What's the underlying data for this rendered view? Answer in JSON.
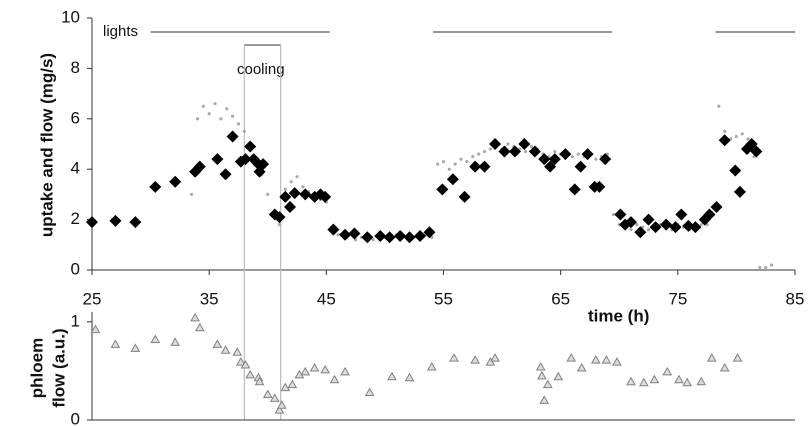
{
  "chart_data": [
    {
      "type": "scatter",
      "y_label": "uptake and flow (mg/s)",
      "x_label": "time (h)",
      "xlim": [
        25,
        85
      ],
      "xticks": [
        25,
        35,
        45,
        55,
        65,
        75,
        85
      ],
      "ylim": [
        0,
        10
      ],
      "yticks": [
        0,
        2,
        4,
        6,
        8,
        10
      ],
      "series": [
        {
          "marker": "dot",
          "color": "#a9a9a9",
          "x": [
            33.5,
            34,
            34.5,
            35,
            35.5,
            36,
            36.5,
            37,
            37.5,
            38,
            38.5,
            39,
            39.5,
            40,
            40.5,
            41,
            41.5,
            42,
            42.5,
            43,
            43.5,
            44,
            44.5,
            45,
            45.5,
            46,
            46.5,
            47,
            47.5,
            48,
            48.5,
            49,
            49.5,
            50,
            50.5,
            51,
            51.5,
            52,
            52.5,
            53,
            53.5,
            54,
            54.5,
            55,
            55.5,
            56,
            56.5,
            57,
            57.5,
            58,
            58.5,
            59,
            59.5,
            60,
            60.5,
            61,
            61.5,
            62,
            62.5,
            63,
            63.5,
            64,
            64.5,
            65,
            65.5,
            66,
            66.5,
            67,
            67.5,
            68,
            68.5,
            69,
            69.5,
            70,
            70.5,
            71,
            71.5,
            72,
            72.5,
            73,
            73.5,
            74,
            74.5,
            75,
            75.5,
            76,
            76.5,
            77,
            77.5,
            78,
            78.5,
            79,
            79.5,
            80,
            80.5,
            81,
            81.5,
            82,
            82.5,
            83
          ],
          "values": [
            3.0,
            6.0,
            6.5,
            6.2,
            6.6,
            6.0,
            6.4,
            6.1,
            5.8,
            5.5,
            5.0,
            4.3,
            3.8,
            3.0,
            2.2,
            1.8,
            3.2,
            3.5,
            3.7,
            3.3,
            3.1,
            2.9,
            2.8,
            2.7,
            1.5,
            1.4,
            1.3,
            1.4,
            1.2,
            1.3,
            1.4,
            1.2,
            1.3,
            1.3,
            1.2,
            1.4,
            1.3,
            1.2,
            1.3,
            1.3,
            1.4,
            1.3,
            4.2,
            4.3,
            4.0,
            4.2,
            4.4,
            4.3,
            4.5,
            4.6,
            4.7,
            4.8,
            4.9,
            4.8,
            5.0,
            4.9,
            4.8,
            4.7,
            4.9,
            4.8,
            4.6,
            4.5,
            4.7,
            4.6,
            4.7,
            4.5,
            4.6,
            4.5,
            4.6,
            4.4,
            4.5,
            4.6,
            2.2,
            1.8,
            1.7,
            1.6,
            1.8,
            1.7,
            1.6,
            1.7,
            1.8,
            1.7,
            1.6,
            1.8,
            1.7,
            1.6,
            1.7,
            1.8,
            1.8,
            2.2,
            6.5,
            5.5,
            5.2,
            5.3,
            5.4,
            5.2,
            4.5,
            0.1,
            0.1,
            0.2
          ]
        },
        {
          "marker": "diamond",
          "color": "#000000",
          "x": [
            25,
            27,
            28.7,
            30.4,
            32.1,
            33.8,
            34.2,
            35.7,
            36.4,
            37,
            37.7,
            38.1,
            38.5,
            38.8,
            39.2,
            39.3,
            39.6,
            40.6,
            41,
            41.5,
            41.9,
            42.3,
            43.2,
            44,
            44.5,
            44.9,
            45.6,
            46.6,
            47.4,
            48.5,
            49.6,
            50.4,
            51.3,
            52.1,
            53,
            53.8,
            54.9,
            55.8,
            56.8,
            57.7,
            58.5,
            59.4,
            60.2,
            61.1,
            61.9,
            62.8,
            63.6,
            64.1,
            64.5,
            65.4,
            66.2,
            66.7,
            67.3,
            67.9,
            68.3,
            68.8,
            70.1,
            70.5,
            71,
            71.8,
            72.5,
            73.1,
            74,
            74.8,
            75.3,
            75.9,
            76.5,
            77.3,
            77.7,
            78.3,
            79,
            79.9,
            80.3,
            80.9,
            81.3,
            81.7
          ],
          "values": [
            1.9,
            1.95,
            1.9,
            3.3,
            3.5,
            3.9,
            4.1,
            4.4,
            3.8,
            5.3,
            4.3,
            4.4,
            4.9,
            4.4,
            4.2,
            3.9,
            4.2,
            2.2,
            2.1,
            2.9,
            2.5,
            3.05,
            3.0,
            2.9,
            3.0,
            2.9,
            1.6,
            1.4,
            1.45,
            1.3,
            1.35,
            1.3,
            1.35,
            1.3,
            1.35,
            1.5,
            3.2,
            3.6,
            2.9,
            4.1,
            4.1,
            5.0,
            4.7,
            4.7,
            5.0,
            4.7,
            4.4,
            4.1,
            4.4,
            4.6,
            3.2,
            4.1,
            4.6,
            3.3,
            3.3,
            4.4,
            2.2,
            1.8,
            1.9,
            1.5,
            2.0,
            1.7,
            1.8,
            1.7,
            2.2,
            1.75,
            1.7,
            2.0,
            2.2,
            2.5,
            5.15,
            3.95,
            3.1,
            4.8,
            5.0,
            4.7
          ]
        }
      ],
      "annotations": [
        {
          "text": "lights",
          "spans": [
            [
              30,
              45.3
            ],
            [
              54.1,
              69.4
            ],
            [
              78.2,
              85
            ]
          ]
        },
        {
          "text": "cooling",
          "spans": [
            [
              38,
              41.1
            ]
          ]
        }
      ]
    },
    {
      "type": "scatter",
      "y_label": [
        "phloem",
        "flow (a.u.)"
      ],
      "xlim": [
        25,
        85
      ],
      "ylim": [
        0,
        1.1
      ],
      "yticks": [
        0,
        1
      ],
      "series": [
        {
          "marker": "triangle",
          "color": "#808080",
          "x": [
            25.3,
            27,
            28.7,
            30.4,
            32.1,
            33.8,
            34.2,
            35.7,
            36.4,
            37.4,
            37.7,
            38.1,
            38.5,
            39.2,
            39.3,
            40,
            40.6,
            41,
            41.2,
            41.5,
            42.1,
            42.7,
            43.2,
            44,
            44.9,
            45.7,
            46.6,
            48.7,
            50.6,
            52.1,
            54,
            55.9,
            57.7,
            59,
            59.4,
            63.3,
            63.4,
            63.6,
            63.9,
            64.8,
            65.9,
            66.8,
            68,
            68.9,
            69.8,
            71,
            72.1,
            73,
            74.1,
            75.1,
            75.8,
            77,
            77.9,
            79,
            80.1
          ],
          "values": [
            0.92,
            0.77,
            0.73,
            0.82,
            0.79,
            1.04,
            0.94,
            0.77,
            0.71,
            0.69,
            0.59,
            0.56,
            0.46,
            0.43,
            0.39,
            0.26,
            0.22,
            0.1,
            0.15,
            0.33,
            0.36,
            0.46,
            0.49,
            0.53,
            0.51,
            0.41,
            0.49,
            0.28,
            0.44,
            0.43,
            0.54,
            0.63,
            0.61,
            0.59,
            0.63,
            0.54,
            0.45,
            0.2,
            0.36,
            0.44,
            0.63,
            0.53,
            0.61,
            0.61,
            0.59,
            0.39,
            0.38,
            0.41,
            0.49,
            0.41,
            0.38,
            0.39,
            0.63,
            0.53,
            0.63
          ]
        }
      ]
    }
  ]
}
